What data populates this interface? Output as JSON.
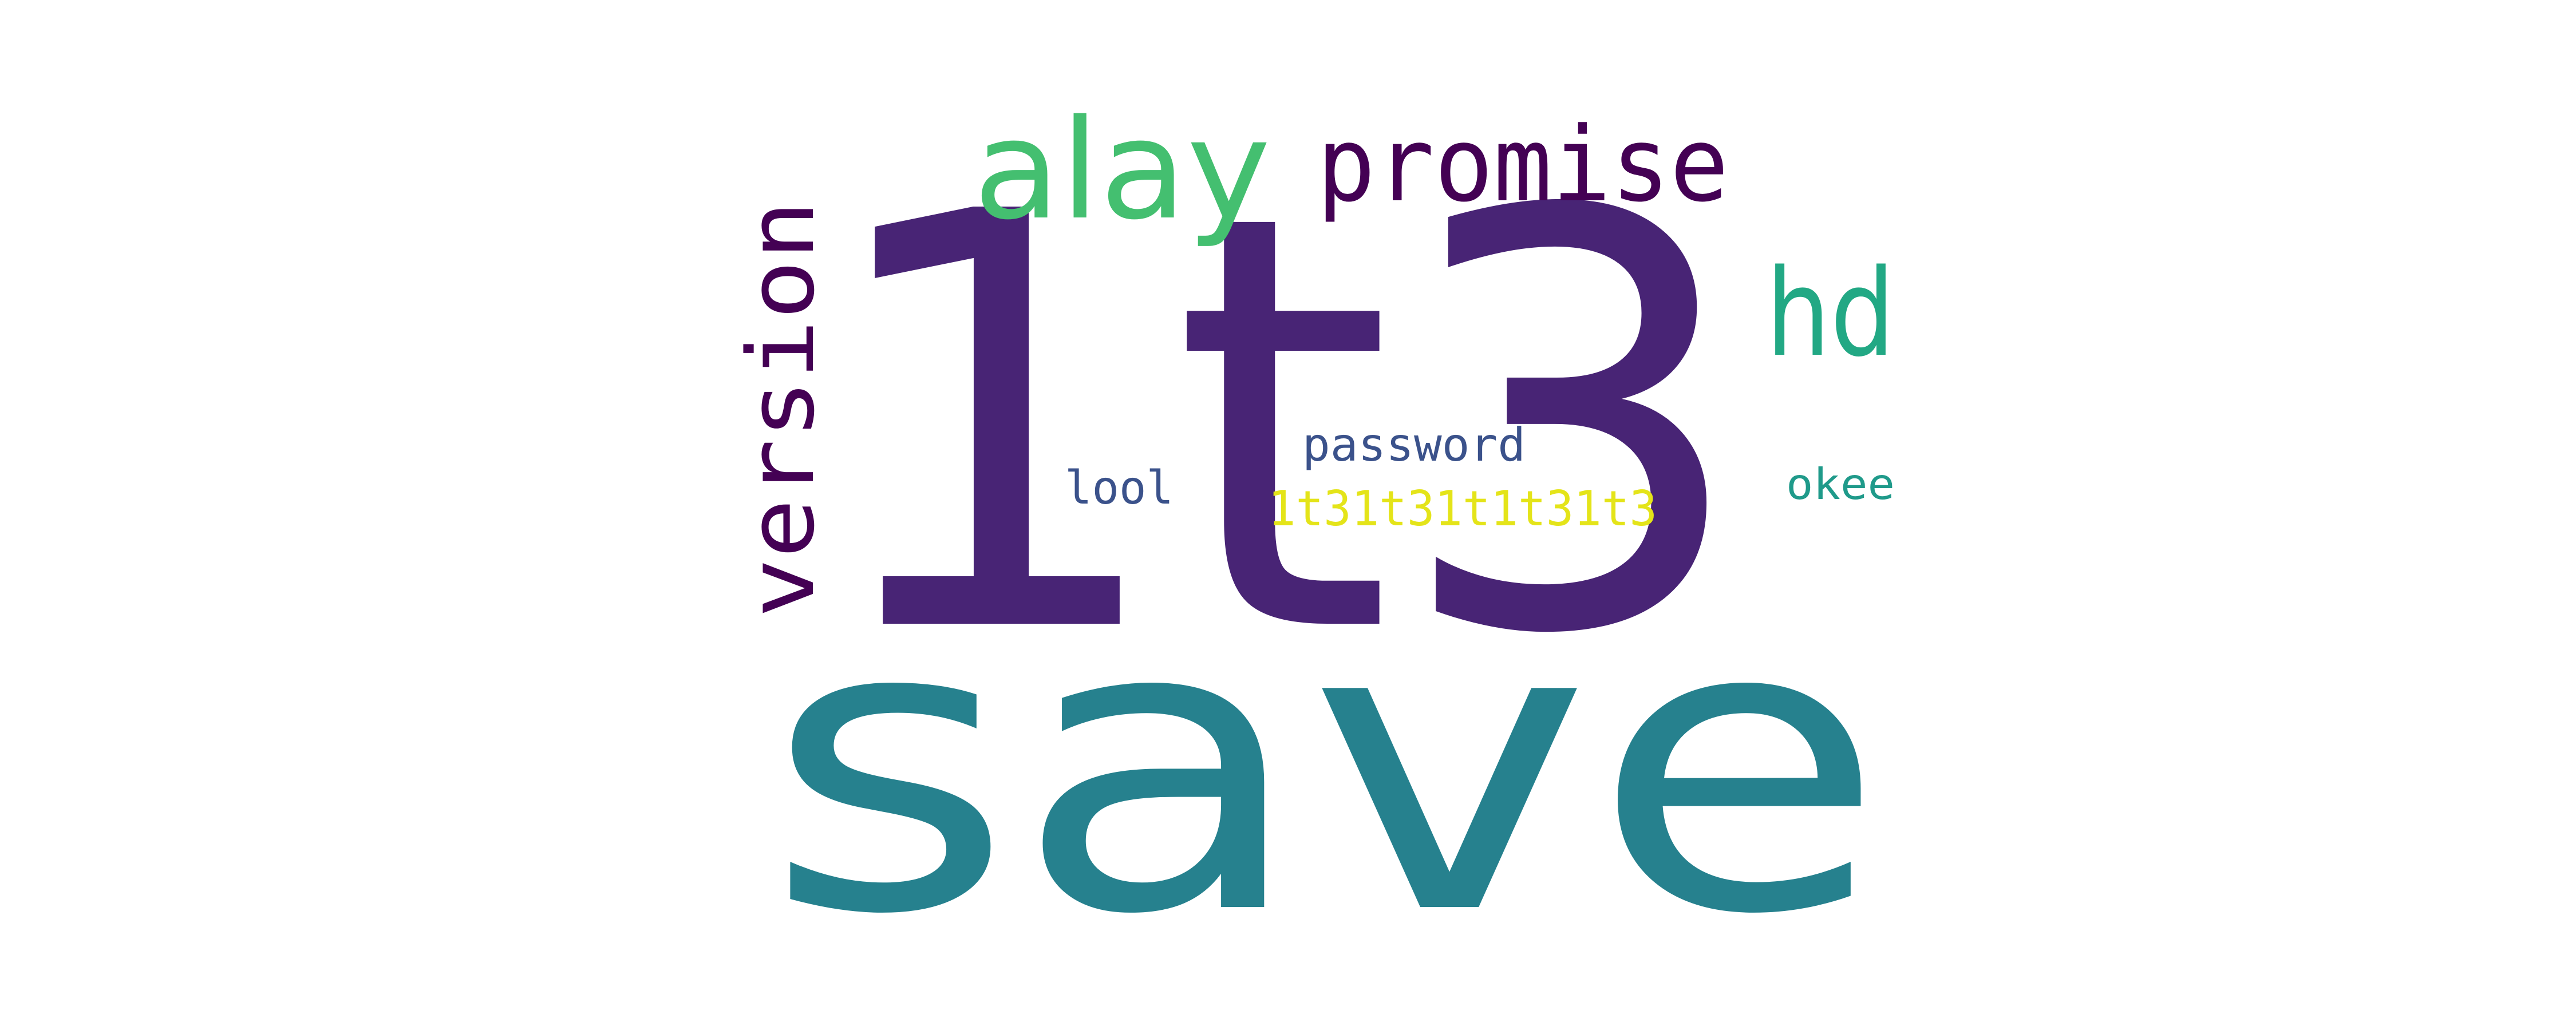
{
  "words": {
    "lt3": {
      "text": "1t3",
      "color": "#482475"
    },
    "save": {
      "text": "save",
      "color": "#26818e"
    },
    "alay": {
      "text": "alay",
      "color": "#44bf70"
    },
    "promise": {
      "text": "promise",
      "color": "#440154"
    },
    "version": {
      "text": "version",
      "color": "#440154"
    },
    "hd": {
      "text": "hd",
      "color": "#22a884"
    },
    "password": {
      "text": "password",
      "color": "#3b528b"
    },
    "lool": {
      "text": "lool",
      "color": "#3b528b"
    },
    "okee": {
      "text": "okee",
      "color": "#1f9a8a"
    },
    "lt3_repeat": {
      "text": "1t31t31t1t31t3",
      "color": "#e4e419"
    }
  }
}
